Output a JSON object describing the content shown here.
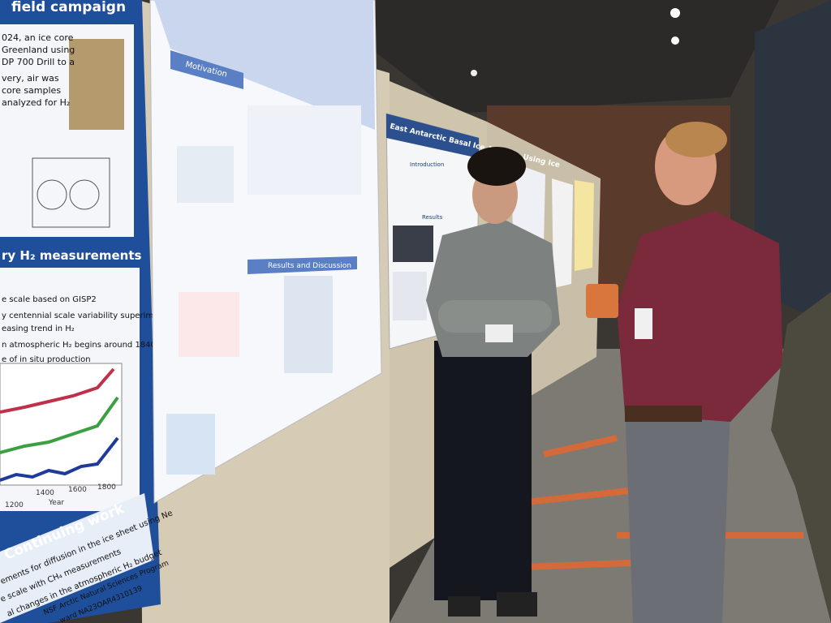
{
  "left_poster": {
    "heading_1": "field campaign",
    "intro_lines": [
      "024, an ice core",
      "Greenland using",
      "DP 700 Drill to a",
      "very, air was",
      "core samples",
      "analyzed for H₂"
    ],
    "heading_2": "ry H₂ measurements",
    "bullets": [
      "e scale based on GISP2",
      "y centennial scale variability superimposed",
      "easing trend in H₂",
      "n atmospheric H₂ begins around 1840",
      "e of in situ production"
    ],
    "axis_years": [
      "1200",
      "1400",
      "1600",
      "1800"
    ],
    "axis_label": "Year",
    "heading_3": "Continuing work",
    "work_lines": [
      "ements for diffusion in the ice sheet using Ne",
      "e scale with CH₄ measurements",
      "al changes in the atmospheric H₂ budget"
    ],
    "funding": [
      "NSF Arctic Natural Sciences Program",
      "ward NA23OAR4310139"
    ]
  },
  "middle_poster": {
    "section_1": "Motivation",
    "section_2": "Results and Discussion"
  },
  "right_poster": {
    "title": "East Antarctic Basal Ice Analysis Using Ice",
    "section_1": "Introduction",
    "section_2": "Results"
  }
}
